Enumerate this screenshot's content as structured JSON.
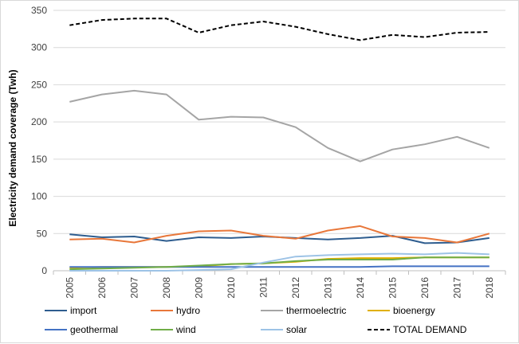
{
  "chart_data": {
    "type": "line",
    "title": "",
    "xlabel": "",
    "ylabel": "Electricity demand coverage (Twh)",
    "ylim": [
      0,
      350
    ],
    "yticks": [
      0,
      50,
      100,
      150,
      200,
      250,
      300,
      350
    ],
    "grid": true,
    "legend_position": "bottom",
    "categories": [
      "2005",
      "2006",
      "2007",
      "2008",
      "2009",
      "2010",
      "2011",
      "2012",
      "2013",
      "2014",
      "2015",
      "2016",
      "2017",
      "2018"
    ],
    "series": [
      {
        "name": "import",
        "color": "#2e5d8f",
        "dash": "solid",
        "values": [
          49,
          45,
          46,
          40,
          45,
          44,
          46,
          44,
          42,
          44,
          47,
          37,
          38,
          44
        ]
      },
      {
        "name": "hydro",
        "color": "#e8773a",
        "dash": "solid",
        "values": [
          42,
          43,
          38,
          47,
          53,
          54,
          47,
          43,
          54,
          60,
          46,
          44,
          38,
          50
        ]
      },
      {
        "name": "thermoelectric",
        "color": "#a5a5a5",
        "dash": "solid",
        "values": [
          227,
          237,
          242,
          237,
          203,
          207,
          206,
          193,
          165,
          147,
          163,
          170,
          180,
          165
        ]
      },
      {
        "name": "bioenergy",
        "color": "#e0b000",
        "dash": "solid",
        "values": [
          4,
          5,
          5,
          5,
          6,
          9,
          10,
          12,
          16,
          17,
          17,
          18,
          18,
          18
        ]
      },
      {
        "name": "geothermal",
        "color": "#4472c4",
        "dash": "solid",
        "values": [
          5,
          5,
          5,
          5,
          5,
          5,
          5,
          5,
          5,
          5,
          6,
          6,
          6,
          6
        ]
      },
      {
        "name": "wind",
        "color": "#70ad47",
        "dash": "solid",
        "values": [
          2,
          3,
          4,
          5,
          7,
          9,
          10,
          13,
          15,
          15,
          15,
          18,
          18,
          18
        ]
      },
      {
        "name": "solar",
        "color": "#9dc3e6",
        "dash": "solid",
        "values": [
          0,
          0,
          0,
          0,
          1,
          2,
          11,
          19,
          21,
          22,
          23,
          22,
          24,
          22
        ]
      },
      {
        "name": "TOTAL DEMAND",
        "color": "#000000",
        "dash": "dashed",
        "values": [
          330,
          337,
          339,
          339,
          320,
          330,
          335,
          328,
          318,
          310,
          317,
          314,
          320,
          321
        ]
      }
    ]
  }
}
